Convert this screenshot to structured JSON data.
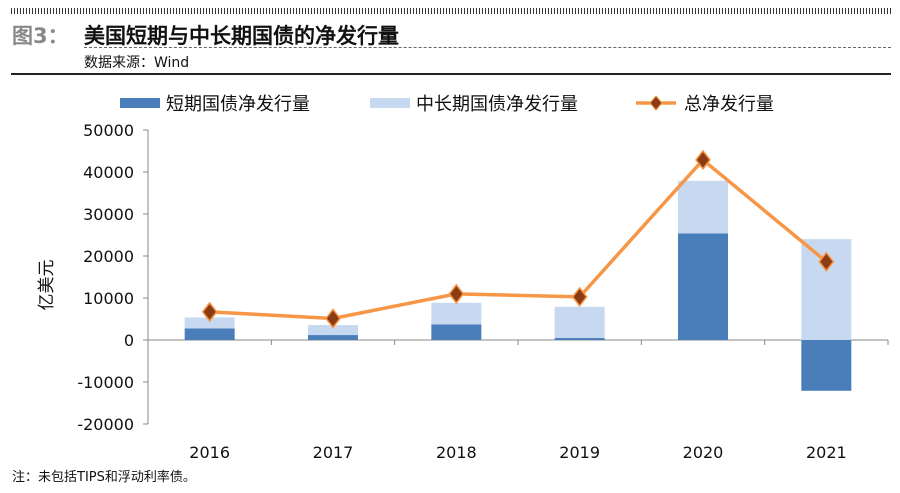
{
  "header": {
    "figure_label": "图3：",
    "title": "美国短期与中长期国债的净发行量",
    "source": "数据来源：Wind"
  },
  "note": "注：未包括TIPS和浮动利率债。",
  "chart_data": {
    "type": "bar",
    "title": "美国短期与中长期国债的净发行量",
    "ylabel": "亿美元",
    "xlabel": "",
    "categories": [
      "2016",
      "2017",
      "2018",
      "2019",
      "2020",
      "2021"
    ],
    "ylim": [
      -20000,
      50000
    ],
    "yticks": [
      -20000,
      -10000,
      0,
      10000,
      20000,
      30000,
      40000,
      50000
    ],
    "legend_position": "top",
    "series": [
      {
        "name": "短期国债净发行量",
        "type": "bar",
        "color": "#4a7ebb",
        "values": [
          2760,
          1180,
          3710,
          470,
          25360,
          -12090
        ]
      },
      {
        "name": "中长期国债净发行量",
        "type": "bar",
        "color": "#c6d9f0",
        "values": [
          2610,
          2370,
          5140,
          7430,
          12540,
          24010
        ]
      },
      {
        "name": "总净发行量",
        "type": "line",
        "color": "#f79646",
        "marker_color": "#8b3c13",
        "values": [
          6700,
          5130,
          10980,
          10270,
          42890,
          18640
        ]
      }
    ]
  }
}
